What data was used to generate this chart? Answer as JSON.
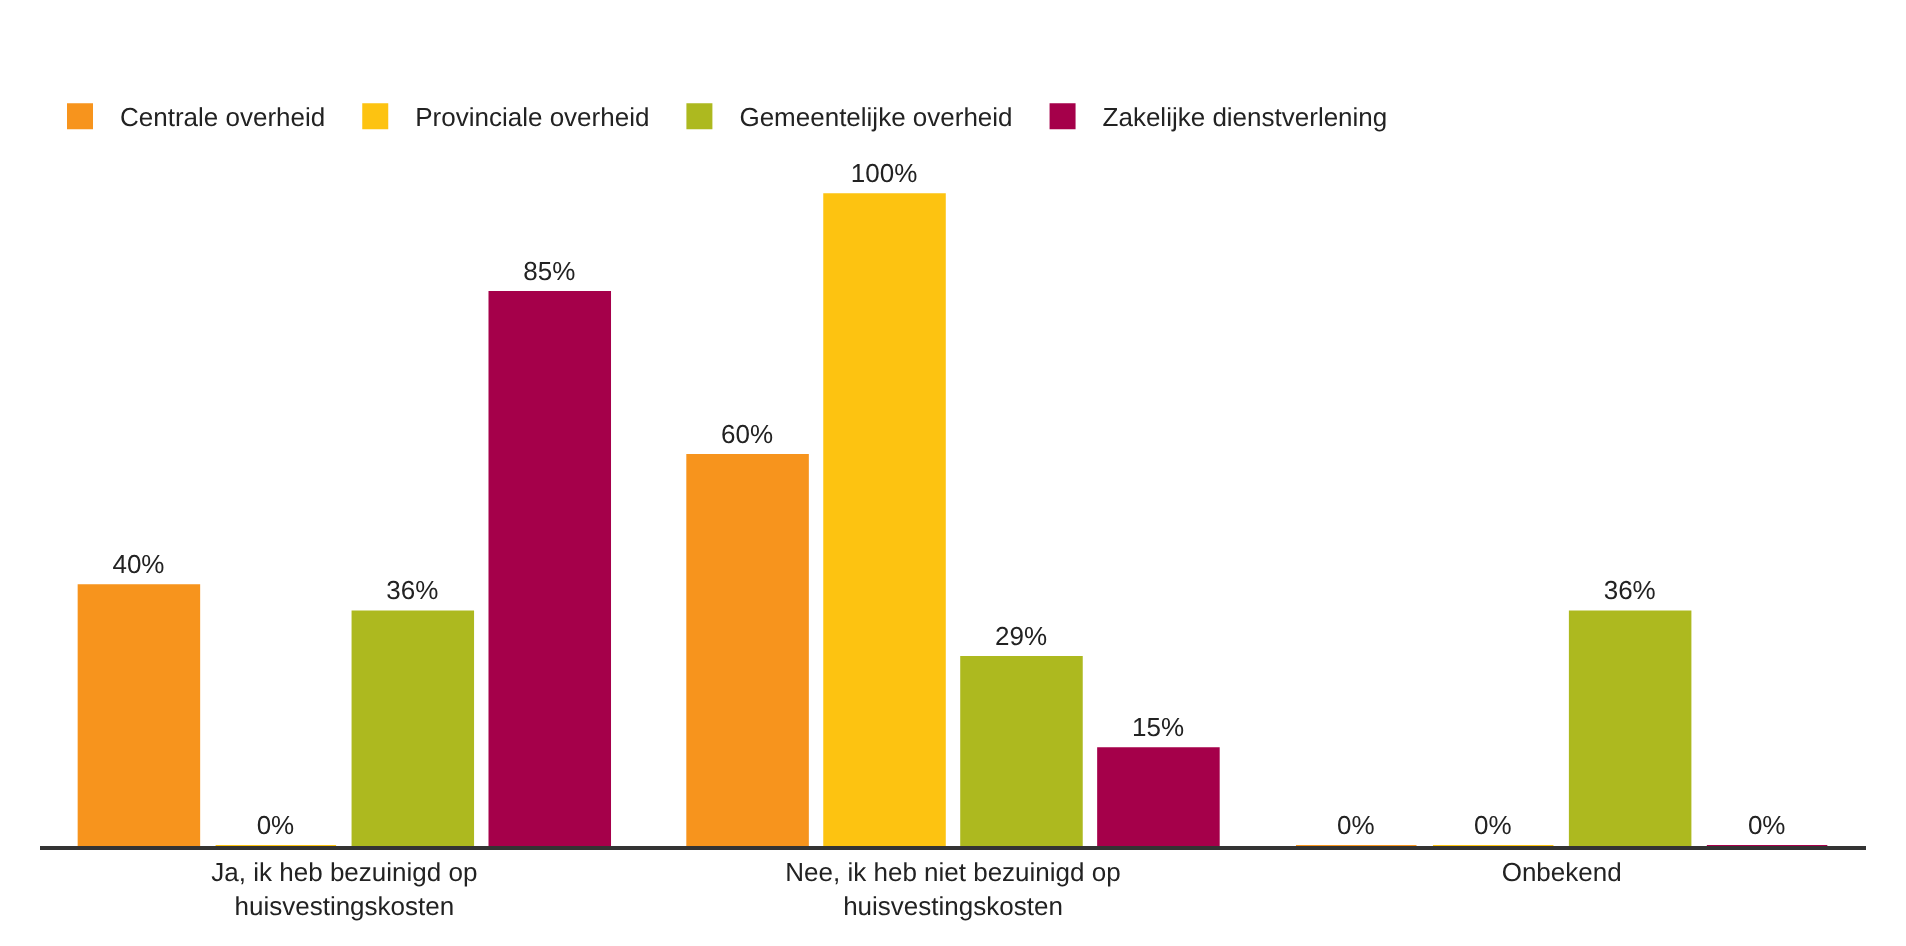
{
  "chart_data": {
    "type": "bar",
    "categories": [
      "Ja, ik heb bezuinigd op huisvestingskosten",
      "Nee, ik heb niet bezuinigd op huisvestingskosten",
      "Onbekend"
    ],
    "series": [
      {
        "name": "Centrale overheid",
        "color": "#f7941d",
        "values": [
          40,
          60,
          0
        ],
        "value_labels": [
          "40%",
          "60%",
          "0%"
        ]
      },
      {
        "name": "Provinciale overheid",
        "color": "#fdc311",
        "values": [
          0,
          100,
          0
        ],
        "value_labels": [
          "0%",
          "100%",
          "0%"
        ]
      },
      {
        "name": "Gemeentelijke overheid",
        "color": "#adb91f",
        "values": [
          36,
          29,
          36
        ],
        "value_labels": [
          "36%",
          "29%",
          "36%"
        ]
      },
      {
        "name": "Zakelijke dienstverlening",
        "color": "#a5004a",
        "values": [
          85,
          15,
          0
        ],
        "value_labels": [
          "85%",
          "15%",
          "0%"
        ]
      }
    ],
    "legend": "top",
    "grid": false
  }
}
